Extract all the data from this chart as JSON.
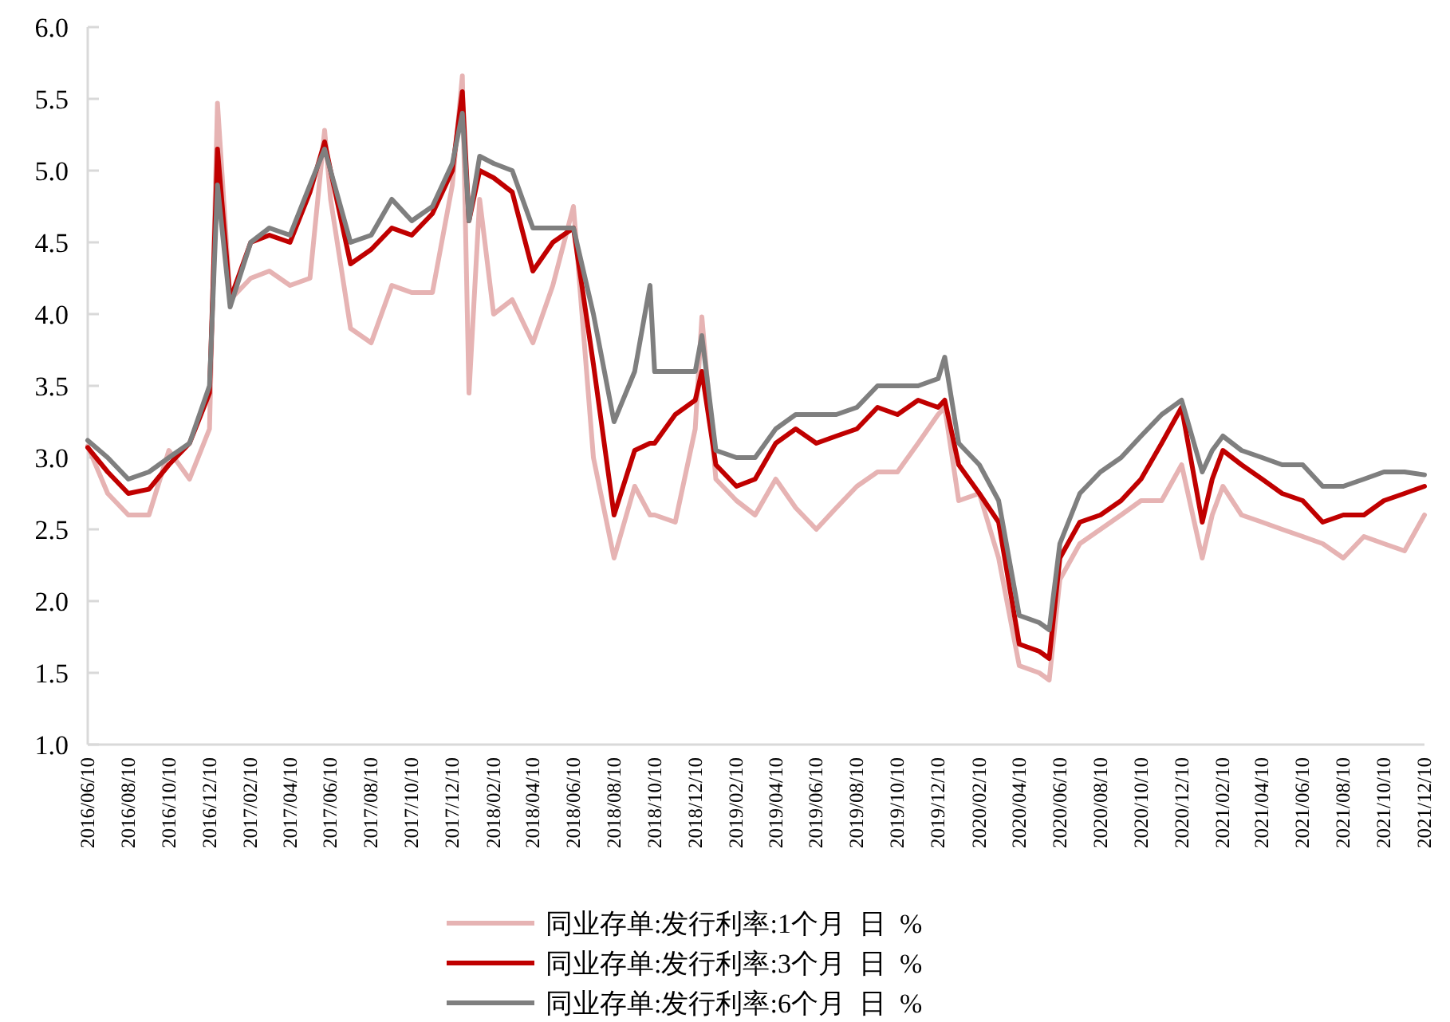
{
  "chart_data": {
    "type": "line",
    "legend": "bottom",
    "grid": false,
    "marker": "none",
    "line_style": "solid",
    "x": [
      "2016-06-10",
      "2016-07-10",
      "2016-08-10",
      "2016-09-10",
      "2016-10-10",
      "2016-11-10",
      "2016-12-10",
      "2016-12-22",
      "2017-01-10",
      "2017-02-10",
      "2017-03-10",
      "2017-04-10",
      "2017-05-10",
      "2017-06-01",
      "2017-06-10",
      "2017-07-10",
      "2017-08-10",
      "2017-09-10",
      "2017-10-10",
      "2017-11-10",
      "2017-12-10",
      "2017-12-25",
      "2018-01-04",
      "2018-01-20",
      "2018-02-10",
      "2018-03-10",
      "2018-04-10",
      "2018-05-10",
      "2018-06-10",
      "2018-07-10",
      "2018-08-10",
      "2018-09-10",
      "2018-10-03",
      "2018-10-10",
      "2018-11-10",
      "2018-12-10",
      "2018-12-20",
      "2019-01-10",
      "2019-02-10",
      "2019-03-10",
      "2019-04-10",
      "2019-05-10",
      "2019-06-10",
      "2019-07-10",
      "2019-08-10",
      "2019-09-10",
      "2019-10-10",
      "2019-11-10",
      "2019-12-10",
      "2019-12-20",
      "2020-01-10",
      "2020-02-10",
      "2020-03-10",
      "2020-04-10",
      "2020-05-10",
      "2020-05-25",
      "2020-06-10",
      "2020-07-10",
      "2020-08-10",
      "2020-09-10",
      "2020-10-10",
      "2020-11-10",
      "2020-12-10",
      "2021-01-10",
      "2021-01-25",
      "2021-02-10",
      "2021-03-10",
      "2021-04-10",
      "2021-05-10",
      "2021-06-10",
      "2021-07-10",
      "2021-08-10",
      "2021-09-10",
      "2021-10-10",
      "2021-11-10",
      "2021-12-10"
    ],
    "series": [
      {
        "name": "同业存单:发行利率:1个月  日  %",
        "color": "#e6b3b3",
        "values": [
          3.08,
          2.75,
          2.6,
          2.6,
          3.05,
          2.85,
          3.2,
          5.47,
          4.1,
          4.25,
          4.3,
          4.2,
          4.25,
          5.28,
          4.8,
          3.9,
          3.8,
          4.2,
          4.15,
          4.15,
          4.9,
          5.66,
          3.45,
          4.8,
          4.0,
          4.1,
          3.8,
          4.2,
          4.75,
          3.0,
          2.3,
          2.8,
          2.6,
          2.6,
          2.55,
          3.2,
          3.98,
          2.85,
          2.7,
          2.6,
          2.85,
          2.65,
          2.5,
          2.65,
          2.8,
          2.9,
          2.9,
          3.1,
          3.3,
          3.35,
          2.7,
          2.75,
          2.3,
          1.55,
          1.5,
          1.45,
          2.15,
          2.4,
          2.5,
          2.6,
          2.7,
          2.7,
          2.95,
          2.3,
          2.6,
          2.8,
          2.6,
          2.55,
          2.5,
          2.45,
          2.4,
          2.3,
          2.45,
          2.4,
          2.35,
          2.6
        ]
      },
      {
        "name": "同业存单:发行利率:3个月  日  %",
        "color": "#c00000",
        "values": [
          3.07,
          2.9,
          2.75,
          2.78,
          2.95,
          3.1,
          3.45,
          5.15,
          4.1,
          4.5,
          4.55,
          4.5,
          4.85,
          5.2,
          5.0,
          4.35,
          4.45,
          4.6,
          4.55,
          4.7,
          5.0,
          5.55,
          4.65,
          5.0,
          4.95,
          4.85,
          4.3,
          4.5,
          4.6,
          3.65,
          2.6,
          3.05,
          3.1,
          3.1,
          3.3,
          3.4,
          3.6,
          2.95,
          2.8,
          2.85,
          3.1,
          3.2,
          3.1,
          3.15,
          3.2,
          3.35,
          3.3,
          3.4,
          3.35,
          3.4,
          2.95,
          2.75,
          2.55,
          1.7,
          1.65,
          1.6,
          2.3,
          2.55,
          2.6,
          2.7,
          2.85,
          3.1,
          3.35,
          2.55,
          2.85,
          3.05,
          2.95,
          2.85,
          2.75,
          2.7,
          2.55,
          2.6,
          2.6,
          2.7,
          2.75,
          2.8
        ]
      },
      {
        "name": "同业存单:发行利率:6个月  日  %",
        "color": "#7f7f7f",
        "values": [
          3.12,
          3.0,
          2.85,
          2.9,
          3.0,
          3.1,
          3.5,
          4.9,
          4.05,
          4.5,
          4.6,
          4.55,
          4.9,
          5.15,
          5.0,
          4.5,
          4.55,
          4.8,
          4.65,
          4.75,
          5.05,
          5.4,
          4.65,
          5.1,
          5.05,
          5.0,
          4.6,
          4.6,
          4.6,
          4.0,
          3.25,
          3.6,
          4.2,
          3.6,
          3.6,
          3.6,
          3.85,
          3.05,
          3.0,
          3.0,
          3.2,
          3.3,
          3.3,
          3.3,
          3.35,
          3.5,
          3.5,
          3.5,
          3.55,
          3.7,
          3.1,
          2.95,
          2.7,
          1.9,
          1.85,
          1.8,
          2.4,
          2.75,
          2.9,
          3.0,
          3.15,
          3.3,
          3.4,
          2.9,
          3.05,
          3.15,
          3.05,
          3.0,
          2.95,
          2.95,
          2.8,
          2.8,
          2.85,
          2.9,
          2.9,
          2.88
        ]
      }
    ],
    "xlim": [
      "2016-06-10",
      "2021-12-10"
    ],
    "xticks": [
      {
        "value": "2016-06-10",
        "label": "2016/06/10"
      },
      {
        "value": "2016-08-10",
        "label": "2016/08/10"
      },
      {
        "value": "2016-10-10",
        "label": "2016/10/10"
      },
      {
        "value": "2016-12-10",
        "label": "2016/12/10"
      },
      {
        "value": "2017-02-10",
        "label": "2017/02/10"
      },
      {
        "value": "2017-04-10",
        "label": "2017/04/10"
      },
      {
        "value": "2017-06-10",
        "label": "2017/06/10"
      },
      {
        "value": "2017-08-10",
        "label": "2017/08/10"
      },
      {
        "value": "2017-10-10",
        "label": "2017/10/10"
      },
      {
        "value": "2017-12-10",
        "label": "2017/12/10"
      },
      {
        "value": "2018-02-10",
        "label": "2018/02/10"
      },
      {
        "value": "2018-04-10",
        "label": "2018/04/10"
      },
      {
        "value": "2018-06-10",
        "label": "2018/06/10"
      },
      {
        "value": "2018-08-10",
        "label": "2018/08/10"
      },
      {
        "value": "2018-10-10",
        "label": "2018/10/10"
      },
      {
        "value": "2018-12-10",
        "label": "2018/12/10"
      },
      {
        "value": "2019-02-10",
        "label": "2019/02/10"
      },
      {
        "value": "2019-04-10",
        "label": "2019/04/10"
      },
      {
        "value": "2019-06-10",
        "label": "2019/06/10"
      },
      {
        "value": "2019-08-10",
        "label": "2019/08/10"
      },
      {
        "value": "2019-10-10",
        "label": "2019/10/10"
      },
      {
        "value": "2019-12-10",
        "label": "2019/12/10"
      },
      {
        "value": "2020-02-10",
        "label": "2020/02/10"
      },
      {
        "value": "2020-04-10",
        "label": "2020/04/10"
      },
      {
        "value": "2020-06-10",
        "label": "2020/06/10"
      },
      {
        "value": "2020-08-10",
        "label": "2020/08/10"
      },
      {
        "value": "2020-10-10",
        "label": "2020/10/10"
      },
      {
        "value": "2020-12-10",
        "label": "2020/12/10"
      },
      {
        "value": "2021-02-10",
        "label": "2021/02/10"
      },
      {
        "value": "2021-04-10",
        "label": "2021/04/10"
      },
      {
        "value": "2021-06-10",
        "label": "2021/06/10"
      },
      {
        "value": "2021-08-10",
        "label": "2021/08/10"
      },
      {
        "value": "2021-10-10",
        "label": "2021/10/10"
      },
      {
        "value": "2021-12-10",
        "label": "2021/12/10"
      }
    ],
    "ylim": [
      1,
      6
    ],
    "yticks": [
      {
        "value": 1,
        "label": "1.0"
      },
      {
        "value": 1.5,
        "label": "1.5"
      },
      {
        "value": 2,
        "label": "2.0"
      },
      {
        "value": 2.5,
        "label": "2.5"
      },
      {
        "value": 3,
        "label": "3.0"
      },
      {
        "value": 3.5,
        "label": "3.5"
      },
      {
        "value": 4,
        "label": "4.0"
      },
      {
        "value": 4.5,
        "label": "4.5"
      },
      {
        "value": 5,
        "label": "5.0"
      },
      {
        "value": 5.5,
        "label": "5.5"
      },
      {
        "value": 6,
        "label": "6.0"
      }
    ]
  }
}
